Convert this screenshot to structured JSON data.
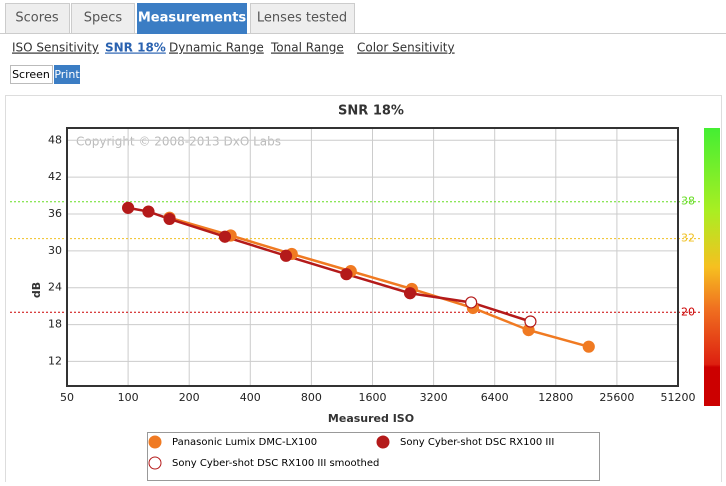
{
  "tabs": [
    "Scores",
    "Specs",
    "Measurements",
    "Lenses tested"
  ],
  "subtabs": [
    "ISO Sensitivity",
    "SNR 18%",
    "Dynamic Range",
    "Tonal Range",
    "Color Sensitivity"
  ],
  "buttons": [
    "Screen",
    "Print"
  ],
  "chart_data": {
    "type": "line",
    "title": "SNR 18%",
    "xlabel": "Measured ISO",
    "ylabel": "dB",
    "annotation": "Copyright © 2008-2013 DxO Labs",
    "xscale": "log",
    "xlim": [
      50,
      51200
    ],
    "xticks": [
      50,
      100,
      200,
      400,
      800,
      1600,
      3200,
      6400,
      12800,
      25600,
      51200
    ],
    "ylim": [
      8,
      50
    ],
    "yticks": [
      12,
      18,
      24,
      30,
      36,
      42,
      48
    ],
    "grid": true,
    "reference_lines": [
      {
        "value": 38,
        "color": "#66dd22"
      },
      {
        "value": 32,
        "color": "#f0c020"
      },
      {
        "value": 20,
        "color": "#cc0000"
      }
    ],
    "series": [
      {
        "name": "Panasonic Lumix DMC-LX100",
        "color": "#f07a22",
        "x": [
          160,
          320,
          640,
          1250,
          2500,
          5000,
          9400,
          18600
        ],
        "values": [
          35.4,
          32.5,
          29.5,
          26.7,
          23.8,
          20.7,
          17.1,
          14.4
        ]
      },
      {
        "name": "Sony Cyber-shot DSC RX100 III",
        "color": "#b41a1a",
        "x": [
          100,
          126,
          160,
          300,
          600,
          1190,
          2450
        ],
        "values": [
          37.0,
          36.4,
          35.2,
          32.3,
          29.2,
          26.2,
          23.1
        ]
      },
      {
        "name": "Sony Cyber-shot DSC RX100 III smoothed",
        "color": "#ffffff",
        "x": [
          4900,
          9600
        ],
        "values": [
          21.6,
          18.5
        ]
      }
    ]
  }
}
